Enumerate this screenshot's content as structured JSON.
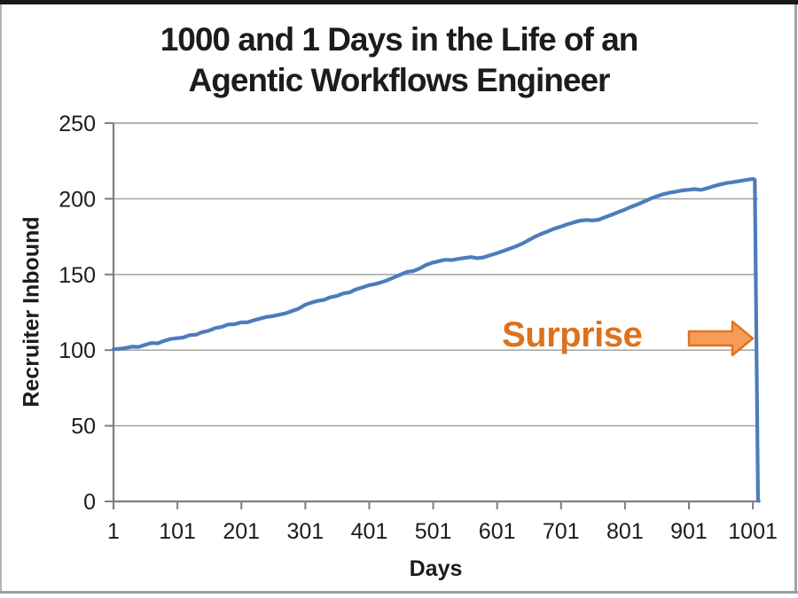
{
  "header": {
    "line1": "1000 and 1 Days in the Life of an",
    "line2": "Agentic Workflows Engineer"
  },
  "annotation": {
    "label": "Surprise"
  },
  "colors": {
    "series": "#4D7CBB",
    "gridline": "#9b9b9b",
    "axis": "#7f7f7f",
    "tick_text": "#1c1c1c",
    "title_text": "#1c1c1c",
    "annotation_text": "#DE721C",
    "arrow_fill": "#F79B59",
    "arrow_stroke": "#E4731C",
    "background": "#ffffff"
  },
  "chart_data": {
    "type": "line",
    "title": "1000 and 1 Days in the Life of an Agentic Workflows Engineer",
    "xlabel": "Days",
    "ylabel": "Recruiter Inbound",
    "xlim": [
      1,
      1010
    ],
    "ylim": [
      0,
      250
    ],
    "xticks": [
      1,
      101,
      201,
      301,
      401,
      501,
      601,
      701,
      801,
      901,
      1001
    ],
    "yticks": [
      0,
      50,
      100,
      150,
      200,
      250
    ],
    "grid": "horizontal-only",
    "legend": "none",
    "annotations": [
      {
        "text": "Surprise",
        "day": 722,
        "value": 108,
        "arrow": {
          "shape": "right-block-arrow",
          "from_day": 901,
          "to_day": 1001,
          "value": 108
        }
      }
    ],
    "series": [
      {
        "name": "Recruiter Inbound",
        "points": [
          [
            1,
            100.6
          ],
          [
            10,
            100.9
          ],
          [
            20,
            101.4
          ],
          [
            30,
            102.3
          ],
          [
            40,
            102.1
          ],
          [
            50,
            103.4
          ],
          [
            60,
            104.7
          ],
          [
            70,
            104.5
          ],
          [
            80,
            106.1
          ],
          [
            90,
            107.3
          ],
          [
            101,
            107.9
          ],
          [
            110,
            108.3
          ],
          [
            120,
            109.9
          ],
          [
            130,
            110.2
          ],
          [
            140,
            111.9
          ],
          [
            150,
            112.8
          ],
          [
            160,
            114.6
          ],
          [
            170,
            115.3
          ],
          [
            180,
            116.9
          ],
          [
            190,
            117.1
          ],
          [
            201,
            118.4
          ],
          [
            210,
            118.3
          ],
          [
            220,
            119.7
          ],
          [
            230,
            120.8
          ],
          [
            240,
            121.9
          ],
          [
            250,
            122.5
          ],
          [
            260,
            123.4
          ],
          [
            270,
            124.3
          ],
          [
            280,
            125.8
          ],
          [
            290,
            127.3
          ],
          [
            301,
            130.0
          ],
          [
            310,
            131.3
          ],
          [
            320,
            132.5
          ],
          [
            330,
            133.2
          ],
          [
            340,
            134.9
          ],
          [
            350,
            135.8
          ],
          [
            360,
            137.4
          ],
          [
            370,
            138.1
          ],
          [
            380,
            140.1
          ],
          [
            390,
            141.4
          ],
          [
            401,
            142.9
          ],
          [
            410,
            143.7
          ],
          [
            420,
            144.8
          ],
          [
            430,
            146.3
          ],
          [
            440,
            148.1
          ],
          [
            450,
            149.9
          ],
          [
            460,
            151.7
          ],
          [
            470,
            152.3
          ],
          [
            480,
            154.0
          ],
          [
            490,
            156.3
          ],
          [
            501,
            157.9
          ],
          [
            510,
            158.8
          ],
          [
            520,
            159.7
          ],
          [
            530,
            159.5
          ],
          [
            540,
            160.3
          ],
          [
            550,
            160.9
          ],
          [
            560,
            161.5
          ],
          [
            570,
            160.8
          ],
          [
            580,
            161.3
          ],
          [
            590,
            162.7
          ],
          [
            601,
            164.1
          ],
          [
            610,
            165.4
          ],
          [
            620,
            167.0
          ],
          [
            630,
            168.5
          ],
          [
            640,
            170.3
          ],
          [
            650,
            172.6
          ],
          [
            660,
            174.9
          ],
          [
            670,
            176.8
          ],
          [
            680,
            178.4
          ],
          [
            690,
            180.2
          ],
          [
            701,
            181.7
          ],
          [
            710,
            183.0
          ],
          [
            720,
            184.3
          ],
          [
            730,
            185.5
          ],
          [
            740,
            186.0
          ],
          [
            750,
            185.7
          ],
          [
            760,
            186.2
          ],
          [
            770,
            187.9
          ],
          [
            780,
            189.4
          ],
          [
            790,
            191.1
          ],
          [
            801,
            192.9
          ],
          [
            810,
            194.6
          ],
          [
            820,
            196.2
          ],
          [
            830,
            198.0
          ],
          [
            840,
            199.9
          ],
          [
            850,
            201.6
          ],
          [
            860,
            202.9
          ],
          [
            870,
            204.0
          ],
          [
            880,
            204.7
          ],
          [
            890,
            205.5
          ],
          [
            901,
            206.0
          ],
          [
            910,
            206.4
          ],
          [
            920,
            205.9
          ],
          [
            930,
            207.0
          ],
          [
            940,
            208.4
          ],
          [
            950,
            209.5
          ],
          [
            960,
            210.4
          ],
          [
            970,
            211.0
          ],
          [
            980,
            211.7
          ],
          [
            990,
            212.4
          ],
          [
            1001,
            213.2
          ],
          [
            1004,
            212.6
          ],
          [
            1009,
            1.5
          ],
          [
            1010,
            0.3
          ]
        ]
      }
    ]
  }
}
